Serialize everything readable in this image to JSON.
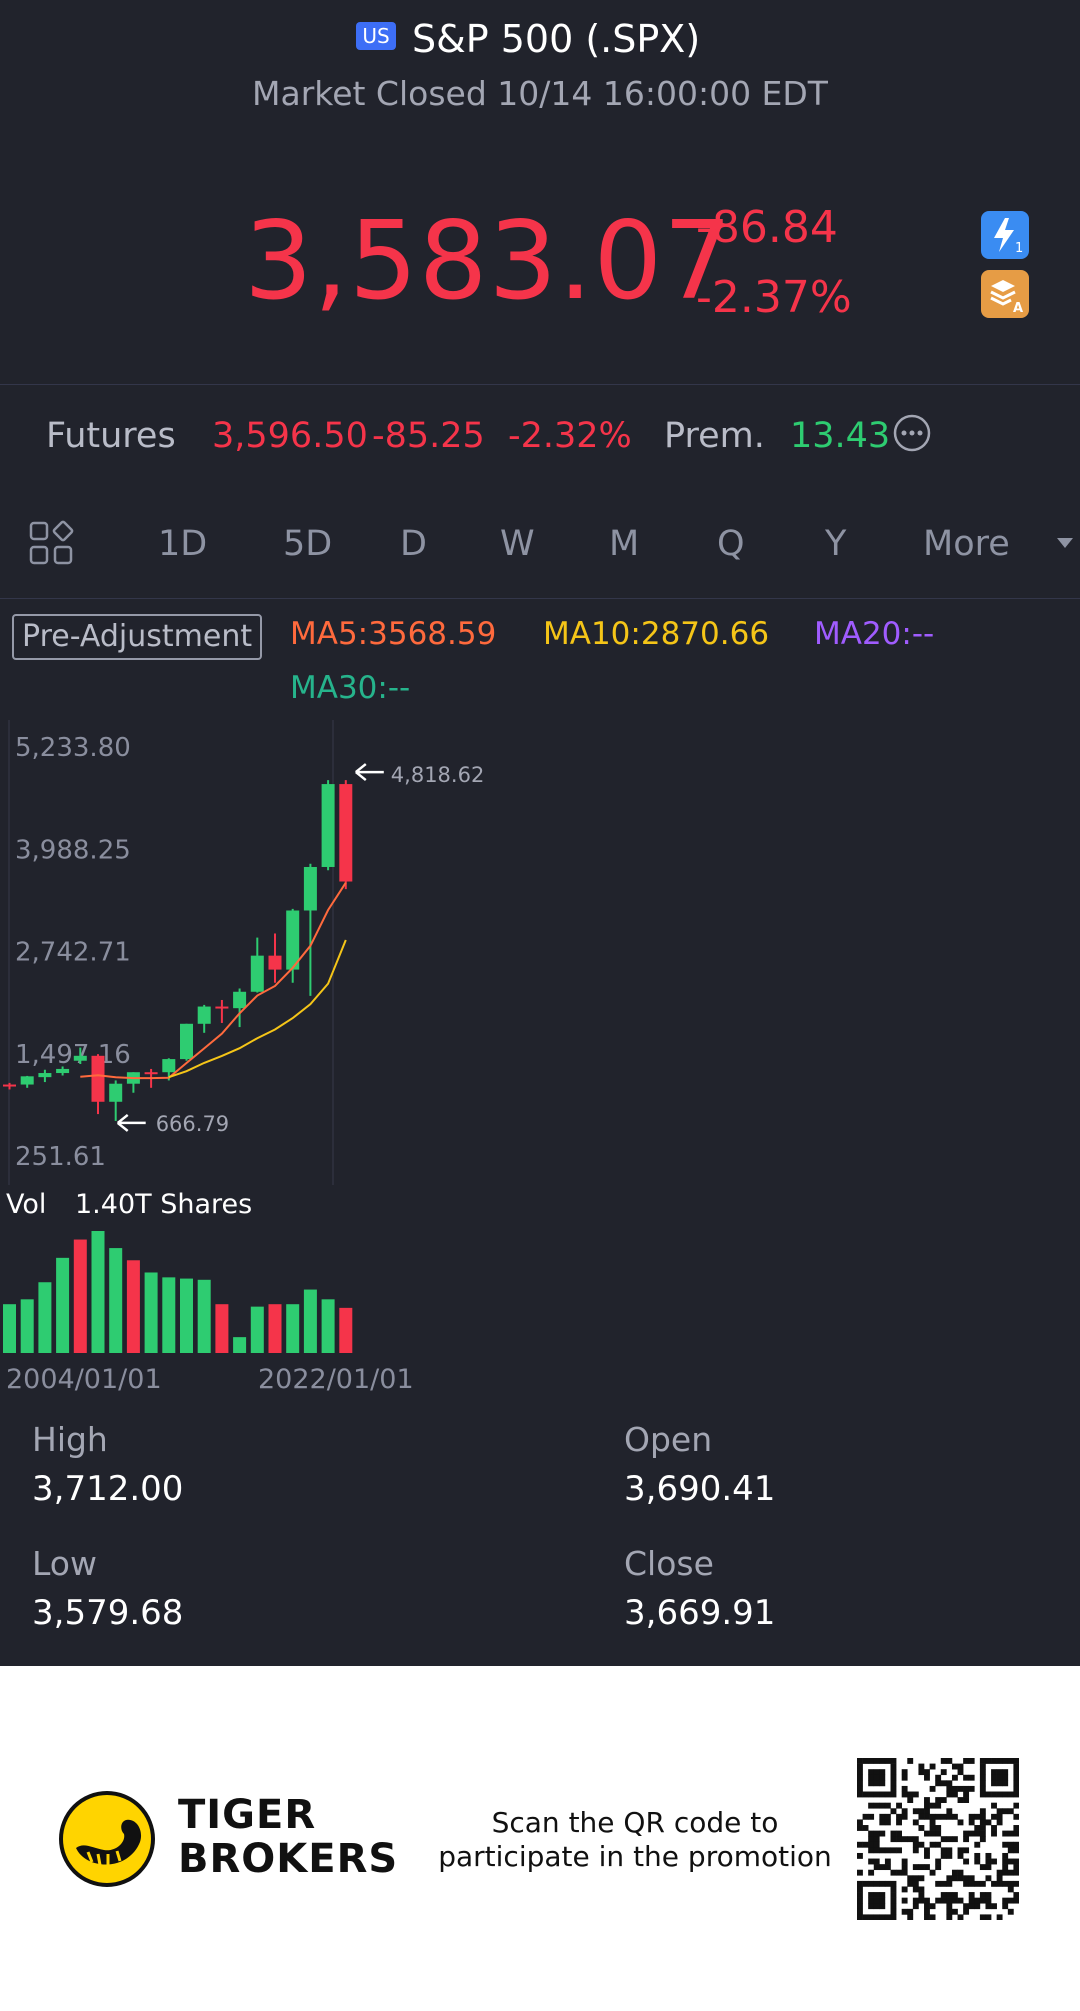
{
  "header": {
    "region_badge": "US",
    "title": "S&P 500 (.SPX)",
    "status": "Market Closed 10/14 16:00:00 EDT"
  },
  "quote": {
    "price": "3,583.07",
    "change": "-86.84",
    "change_pct": "-2.37%"
  },
  "futures": {
    "label": "Futures",
    "price": "3,596.50",
    "change": "-85.25",
    "change_pct": "-2.32%",
    "prem_label": "Prem.",
    "prem_value": "13.43"
  },
  "periods": {
    "tabs": [
      "1D",
      "5D",
      "D",
      "W",
      "M",
      "Q",
      "Y",
      "More"
    ],
    "selected": "Y"
  },
  "indicators": {
    "adjustment": "Pre-Adjustment",
    "ma5": "MA5:3568.59",
    "ma10": "MA10:2870.66",
    "ma20": "MA20:--",
    "ma30": "MA30:--"
  },
  "chart_data": {
    "type": "candlestick",
    "y_ticks": [
      "5,233.80",
      "3,988.25",
      "2,742.71",
      "1,497.16",
      "251.61"
    ],
    "ylim": [
      251.61,
      5233.8
    ],
    "max_marker": "4,818.62",
    "min_marker": "666.79",
    "candles": [
      {
        "o": 1110,
        "h": 1130,
        "l": 1050,
        "c": 1110,
        "dir": "down"
      },
      {
        "o": 1110,
        "h": 1215,
        "l": 1070,
        "c": 1210,
        "dir": "up"
      },
      {
        "o": 1200,
        "h": 1290,
        "l": 1140,
        "c": 1250,
        "dir": "up"
      },
      {
        "o": 1250,
        "h": 1330,
        "l": 1220,
        "c": 1300,
        "dir": "up"
      },
      {
        "o": 1400,
        "h": 1560,
        "l": 1360,
        "c": 1460,
        "dir": "up"
      },
      {
        "o": 1460,
        "h": 1480,
        "l": 750,
        "c": 900,
        "dir": "down"
      },
      {
        "o": 900,
        "h": 1160,
        "l": 666.79,
        "c": 1120,
        "dir": "up"
      },
      {
        "o": 1120,
        "h": 1260,
        "l": 1010,
        "c": 1260,
        "dir": "up"
      },
      {
        "o": 1260,
        "h": 1300,
        "l": 1070,
        "c": 1260,
        "dir": "down"
      },
      {
        "o": 1260,
        "h": 1430,
        "l": 1160,
        "c": 1420,
        "dir": "up"
      },
      {
        "o": 1420,
        "h": 1850,
        "l": 1400,
        "c": 1850,
        "dir": "up"
      },
      {
        "o": 1850,
        "h": 2080,
        "l": 1740,
        "c": 2060,
        "dir": "up"
      },
      {
        "o": 2060,
        "h": 2140,
        "l": 1860,
        "c": 2040,
        "dir": "down"
      },
      {
        "o": 2040,
        "h": 2280,
        "l": 1810,
        "c": 2240,
        "dir": "up"
      },
      {
        "o": 2240,
        "h": 2900,
        "l": 2230,
        "c": 2680,
        "dir": "up"
      },
      {
        "o": 2680,
        "h": 2950,
        "l": 2350,
        "c": 2510,
        "dir": "down"
      },
      {
        "o": 2510,
        "h": 3250,
        "l": 2350,
        "c": 3230,
        "dir": "up"
      },
      {
        "o": 3230,
        "h": 3800,
        "l": 2190,
        "c": 3760,
        "dir": "up"
      },
      {
        "o": 3760,
        "h": 4818.62,
        "l": 3720,
        "c": 4770,
        "dir": "up"
      },
      {
        "o": 4770,
        "h": 4818.62,
        "l": 3490,
        "c": 3583.07,
        "dir": "down"
      }
    ],
    "ma5_series": [
      null,
      null,
      null,
      null,
      1206,
      1224,
      1198,
      1188,
      1188,
      1192,
      1372,
      1550,
      1730,
      1978,
      2194,
      2310,
      2532,
      2800,
      3236,
      3568.59
    ],
    "ma10_series": [
      null,
      null,
      null,
      null,
      null,
      null,
      null,
      null,
      null,
      1199,
      1273,
      1374,
      1459,
      1553,
      1675,
      1780,
      1919,
      2088,
      2340,
      2870.66
    ],
    "volume": {
      "label": "Vol",
      "value": "1.40T Shares",
      "bars": [
        {
          "v": 0.4,
          "dir": "up"
        },
        {
          "v": 0.44,
          "dir": "up"
        },
        {
          "v": 0.58,
          "dir": "up"
        },
        {
          "v": 0.78,
          "dir": "up"
        },
        {
          "v": 0.93,
          "dir": "down"
        },
        {
          "v": 1.0,
          "dir": "up"
        },
        {
          "v": 0.86,
          "dir": "up"
        },
        {
          "v": 0.76,
          "dir": "down"
        },
        {
          "v": 0.66,
          "dir": "up"
        },
        {
          "v": 0.62,
          "dir": "up"
        },
        {
          "v": 0.61,
          "dir": "up"
        },
        {
          "v": 0.6,
          "dir": "up"
        },
        {
          "v": 0.4,
          "dir": "down"
        },
        {
          "v": 0.13,
          "dir": "up"
        },
        {
          "v": 0.38,
          "dir": "up"
        },
        {
          "v": 0.4,
          "dir": "down"
        },
        {
          "v": 0.4,
          "dir": "up"
        },
        {
          "v": 0.52,
          "dir": "up"
        },
        {
          "v": 0.44,
          "dir": "up"
        },
        {
          "v": 0.37,
          "dir": "down"
        }
      ]
    },
    "x_labels": [
      "2004/01/01",
      "2022/01/01"
    ]
  },
  "stats": {
    "high_label": "High",
    "high_value": "3,712.00",
    "open_label": "Open",
    "open_value": "3,690.41",
    "low_label": "Low",
    "low_value": "3,579.68",
    "close_label": "Close",
    "close_value": "3,669.91"
  },
  "footer": {
    "brand_line1": "TIGER",
    "brand_line2": "BROKERS",
    "promo_line1": "Scan the QR code to",
    "promo_line2": "participate in the promotion"
  },
  "colors": {
    "background": "#21232c",
    "up": "#2ecc71",
    "down": "#f5344a",
    "ma5": "#ff6a3d",
    "ma10": "#f5c518",
    "ma20": "#a05cff",
    "ma30": "#26b48c"
  }
}
